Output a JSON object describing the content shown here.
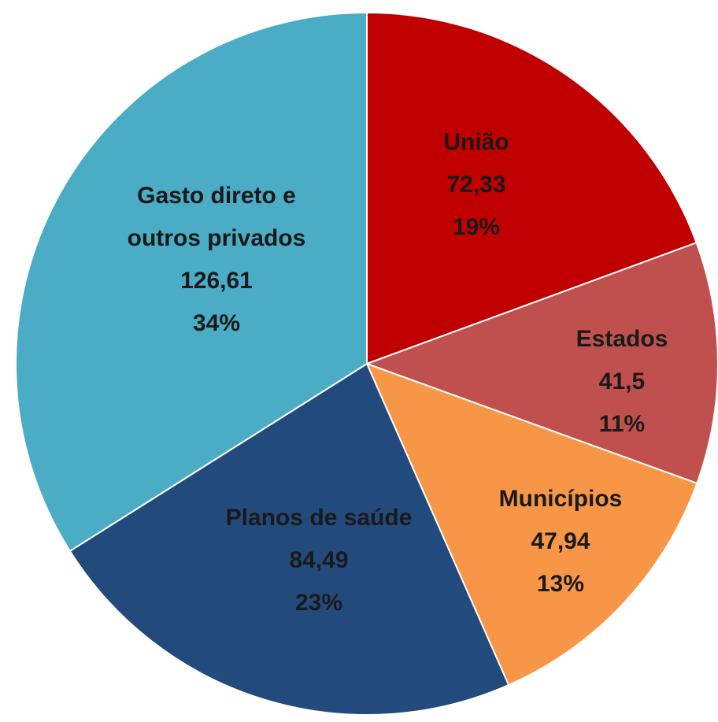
{
  "chart_data": {
    "type": "pie",
    "categories": [
      "União",
      "Estados",
      "Municípios",
      "Planos de saúde",
      "Gasto direto e outros privados"
    ],
    "values": [
      72.33,
      41.5,
      47.94,
      84.49,
      126.61
    ],
    "value_labels": [
      "72,33",
      "41,5",
      "47,94",
      "84,49",
      "126,61"
    ],
    "percents": [
      19,
      11,
      13,
      23,
      34
    ],
    "percent_labels": [
      "19%",
      "11%",
      "13%",
      "23%",
      "34%"
    ],
    "colors": [
      "#c00000",
      "#c0504d",
      "#f79646",
      "#234a7c",
      "#4bacc6"
    ]
  }
}
